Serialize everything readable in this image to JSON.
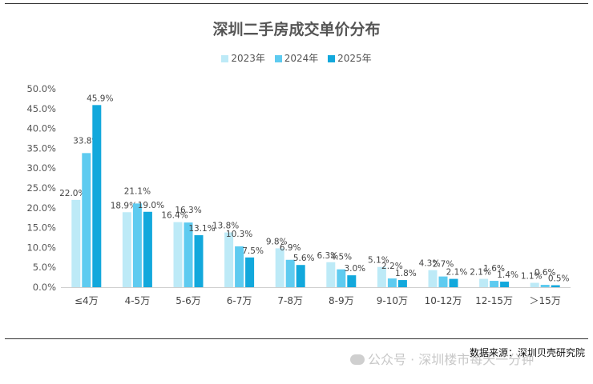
{
  "chart_data": {
    "type": "bar",
    "title": "深圳二手房成交单价分布",
    "categories": [
      "≤4万",
      "4-5万",
      "5-6万",
      "6-7万",
      "7-8万",
      "8-9万",
      "9-10万",
      "10-12万",
      "12-15万",
      "＞15万"
    ],
    "series": [
      {
        "name": "2023年",
        "color": "#bdeaf7",
        "values": [
          22.0,
          18.9,
          16.4,
          13.8,
          9.8,
          6.3,
          5.1,
          4.3,
          2.1,
          1.1
        ],
        "labels": [
          "22.0%",
          "18.9%",
          "16.4%",
          "13.8%",
          "9.8%",
          "6.3%",
          "5.1%",
          "4.3%",
          "2.1%",
          "1.1%"
        ]
      },
      {
        "name": "2024年",
        "color": "#5ecbf0",
        "values": [
          33.8,
          21.1,
          16.3,
          10.3,
          6.9,
          4.5,
          2.2,
          2.7,
          1.6,
          0.6
        ],
        "labels": [
          "33.8%",
          "21.1%",
          "16.3%",
          "10.3%",
          "6.9%",
          "4.5%",
          "2.2%",
          "2.7%",
          "1.6%",
          "0.6%"
        ]
      },
      {
        "name": "2025年",
        "color": "#12a8dc",
        "values": [
          45.9,
          19.0,
          13.1,
          7.5,
          5.6,
          3.0,
          1.8,
          2.1,
          1.4,
          0.5
        ],
        "labels": [
          "45.9%",
          "19.0%",
          "13.1%",
          "7.5%",
          "5.6%",
          "3.0%",
          "1.8%",
          "2.1%",
          "1.4%",
          "0.5%"
        ]
      }
    ],
    "ylim": [
      0,
      50
    ],
    "yticks": [
      "0.0%",
      "5.0%",
      "10.0%",
      "15.0%",
      "20.0%",
      "25.0%",
      "30.0%",
      "35.0%",
      "40.0%",
      "45.0%",
      "50.0%"
    ],
    "legend_position": "top-center"
  },
  "footer": {
    "source": "数据来源：深圳贝壳研究院",
    "watermark": "公众号 · 深圳楼市每天一分钟"
  }
}
